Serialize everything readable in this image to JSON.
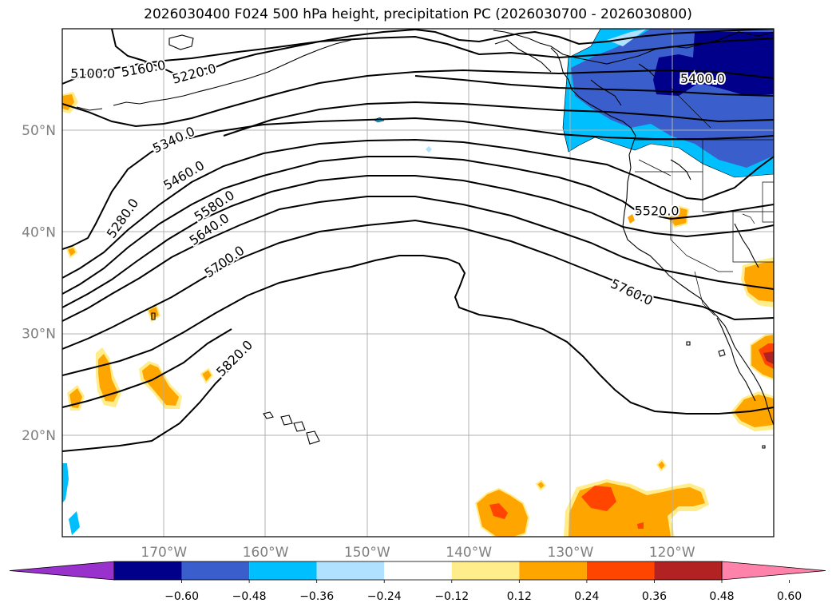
{
  "title": "2026030400 F024 500 hPa height, precipitation PC (2026030700 - 2026030800)",
  "chart_data": {
    "type": "map-contour",
    "projection": "lat-lon",
    "lon_range": [
      -180,
      -110
    ],
    "lat_range": [
      10,
      60
    ],
    "x_ticks": [
      {
        "lon": -170,
        "label": "170°W"
      },
      {
        "lon": -160,
        "label": "160°W"
      },
      {
        "lon": -150,
        "label": "150°W"
      },
      {
        "lon": -140,
        "label": "140°W"
      },
      {
        "lon": -130,
        "label": "130°W"
      },
      {
        "lon": -120,
        "label": "120°W"
      }
    ],
    "y_ticks": [
      {
        "lat": 20,
        "label": "20°N"
      },
      {
        "lat": 30,
        "label": "30°N"
      },
      {
        "lat": 40,
        "label": "40°N"
      },
      {
        "lat": 50,
        "label": "50°N"
      }
    ],
    "contour_variable": "500 hPa height",
    "contour_labels": [
      {
        "value": "5100.0",
        "lon": -177,
        "lat": 55.5,
        "angle": 0
      },
      {
        "value": "5160.0",
        "lon": -172,
        "lat": 56.0,
        "angle": -10
      },
      {
        "value": "5220.0",
        "lon": -167,
        "lat": 55.5,
        "angle": -15
      },
      {
        "value": "5280.0",
        "lon": -174,
        "lat": 41.3,
        "angle": -55
      },
      {
        "value": "5340.0",
        "lon": -169,
        "lat": 49.0,
        "angle": -25
      },
      {
        "value": "5460.0",
        "lon": -168,
        "lat": 45.5,
        "angle": -30
      },
      {
        "value": "5580.0",
        "lon": -165,
        "lat": 42.5,
        "angle": -33
      },
      {
        "value": "5640.0",
        "lon": -165.5,
        "lat": 40.2,
        "angle": -35
      },
      {
        "value": "5700.0",
        "lon": -164,
        "lat": 37.0,
        "angle": -35
      },
      {
        "value": "5820.0",
        "lon": -163,
        "lat": 27.5,
        "angle": -45
      },
      {
        "value": "5520.0",
        "lon": -121.5,
        "lat": 42.0,
        "angle": 0
      },
      {
        "value": "5760.0",
        "lon": -124,
        "lat": 34.0,
        "angle": 25
      },
      {
        "value": "5400.0",
        "lon": -117,
        "lat": 55.0,
        "angle": 0
      }
    ],
    "colorbar": {
      "ticks": [
        "−0.60",
        "−0.48",
        "−0.36",
        "−0.24",
        "−0.12",
        "0.12",
        "0.24",
        "0.36",
        "0.48",
        "0.60"
      ],
      "colors": [
        "#9932cc",
        "#00008b",
        "#3a5fcd",
        "#00bfff",
        "#b0e2ff",
        "#ffffff",
        "#ffec8b",
        "#ffa500",
        "#ff4500",
        "#b22222",
        "#ff82ab"
      ]
    }
  }
}
